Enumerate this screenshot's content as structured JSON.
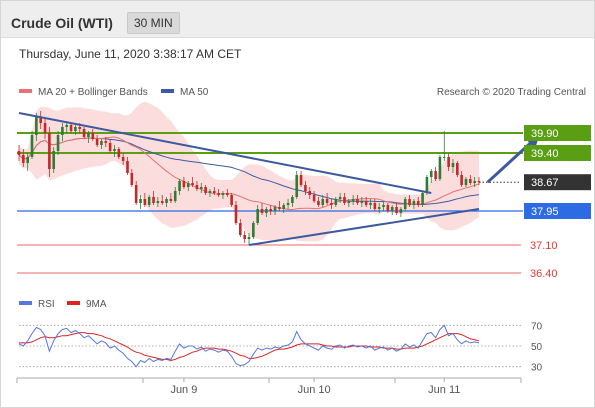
{
  "header": {
    "title": "Crude Oil (WTI)",
    "timeframe": "30 MIN"
  },
  "timestamp": "Thursday, June 11, 2020 3:38:17 AM CET",
  "legend": {
    "ma20_label": "MA 20 + Bollinger Bands",
    "ma50_label": "MA 50",
    "credit": "Research © 2020 Trading Central",
    "rsi_label": "RSI",
    "ma9_label": "9MA"
  },
  "colors": {
    "candle_up": "#2e7d32",
    "candle_down": "#c62828",
    "ma20": "#e57373",
    "ma50": "#3b5ba5",
    "bollinger_fill": "#f9d2d2",
    "resistance": "#5a9e14",
    "support": "#2d6be4",
    "target": "#e53935",
    "current": "#333333",
    "trendline": "#3d5a9e",
    "rsi": "#5577dd",
    "ma9": "#dd2222"
  },
  "chart_data": [
    {
      "type": "candlestick",
      "name": "Crude Oil (WTI) 30 MIN",
      "ylim": [
        36.0,
        40.5
      ],
      "x_ticks": [
        "Jun 9",
        "Jun 10",
        "Jun 11"
      ],
      "price_levels": [
        {
          "role": "resistance",
          "value": 39.9,
          "label": "39.90"
        },
        {
          "role": "resistance",
          "value": 39.4,
          "label": "39.40"
        },
        {
          "role": "current",
          "value": 38.67,
          "label": "38.67"
        },
        {
          "role": "support",
          "value": 37.95,
          "label": "37.95"
        },
        {
          "role": "target",
          "value": 37.1,
          "label": "37.10"
        },
        {
          "role": "target",
          "value": 36.4,
          "label": "36.40"
        }
      ],
      "trendlines": [
        {
          "name": "upper",
          "from": [
            0,
            40.4
          ],
          "to": [
            95,
            38.4
          ]
        },
        {
          "name": "lower",
          "from": [
            53,
            37.1
          ],
          "to": [
            106,
            38.0
          ]
        }
      ],
      "forecast_arrow": {
        "from": [
          108,
          38.67
        ],
        "to": [
          120,
          39.85
        ]
      },
      "candles": [
        [
          39.45,
          39.6,
          39.2,
          39.35
        ],
        [
          39.35,
          39.5,
          39.05,
          39.15
        ],
        [
          39.15,
          39.4,
          38.95,
          39.3
        ],
        [
          39.3,
          39.95,
          39.25,
          39.85
        ],
        [
          39.85,
          40.4,
          39.7,
          40.3
        ],
        [
          40.3,
          40.45,
          40.0,
          40.15
        ],
        [
          40.15,
          40.25,
          39.75,
          39.9
        ],
        [
          39.9,
          40.05,
          38.8,
          39.0
        ],
        [
          39.0,
          39.55,
          38.9,
          39.45
        ],
        [
          39.45,
          39.95,
          39.35,
          39.85
        ],
        [
          39.85,
          40.15,
          39.7,
          40.05
        ],
        [
          40.05,
          40.2,
          39.9,
          40.1
        ],
        [
          40.1,
          40.15,
          39.9,
          39.95
        ],
        [
          39.95,
          40.1,
          39.85,
          40.05
        ],
        [
          40.05,
          40.15,
          39.9,
          40.0
        ],
        [
          40.0,
          40.05,
          39.75,
          39.8
        ],
        [
          39.8,
          39.95,
          39.65,
          39.9
        ],
        [
          39.9,
          40.0,
          39.7,
          39.75
        ],
        [
          39.75,
          39.85,
          39.55,
          39.6
        ],
        [
          39.6,
          39.75,
          39.5,
          39.7
        ],
        [
          39.7,
          39.8,
          39.55,
          39.65
        ],
        [
          39.65,
          39.75,
          39.4,
          39.45
        ],
        [
          39.45,
          39.6,
          39.3,
          39.5
        ],
        [
          39.5,
          39.55,
          39.25,
          39.3
        ],
        [
          39.3,
          39.4,
          39.1,
          39.2
        ],
        [
          39.2,
          39.3,
          38.85,
          38.9
        ],
        [
          38.9,
          39.0,
          38.55,
          38.6
        ],
        [
          38.6,
          38.7,
          38.1,
          38.15
        ],
        [
          38.15,
          38.35,
          38.0,
          38.25
        ],
        [
          38.25,
          38.4,
          38.05,
          38.1
        ],
        [
          38.1,
          38.35,
          38.05,
          38.3
        ],
        [
          38.3,
          38.45,
          38.1,
          38.15
        ],
        [
          38.15,
          38.3,
          38.05,
          38.2
        ],
        [
          38.2,
          38.35,
          38.1,
          38.15
        ],
        [
          38.15,
          38.3,
          38.05,
          38.25
        ],
        [
          38.25,
          38.4,
          38.15,
          38.2
        ],
        [
          38.2,
          38.55,
          38.15,
          38.45
        ],
        [
          38.45,
          38.75,
          38.35,
          38.7
        ],
        [
          38.7,
          38.8,
          38.5,
          38.55
        ],
        [
          38.55,
          38.7,
          38.45,
          38.65
        ],
        [
          38.65,
          38.8,
          38.55,
          38.6
        ],
        [
          38.6,
          38.7,
          38.45,
          38.5
        ],
        [
          38.5,
          38.65,
          38.4,
          38.55
        ],
        [
          38.55,
          38.6,
          38.35,
          38.4
        ],
        [
          38.4,
          38.5,
          38.3,
          38.45
        ],
        [
          38.45,
          38.55,
          38.35,
          38.4
        ],
        [
          38.4,
          38.5,
          38.3,
          38.35
        ],
        [
          38.35,
          38.45,
          38.25,
          38.4
        ],
        [
          38.4,
          38.5,
          38.3,
          38.35
        ],
        [
          38.35,
          38.4,
          38.05,
          38.1
        ],
        [
          38.1,
          38.2,
          37.6,
          37.65
        ],
        [
          37.65,
          37.75,
          37.3,
          37.35
        ],
        [
          37.35,
          37.45,
          37.15,
          37.25
        ],
        [
          37.25,
          37.4,
          37.1,
          37.3
        ],
        [
          37.3,
          37.7,
          37.25,
          37.65
        ],
        [
          37.65,
          38.1,
          37.6,
          38.0
        ],
        [
          38.0,
          38.15,
          37.85,
          37.9
        ],
        [
          37.9,
          38.05,
          37.8,
          38.0
        ],
        [
          38.0,
          38.1,
          37.85,
          37.95
        ],
        [
          37.95,
          38.1,
          37.85,
          38.05
        ],
        [
          38.05,
          38.2,
          37.95,
          38.0
        ],
        [
          38.0,
          38.15,
          37.9,
          38.1
        ],
        [
          38.1,
          38.25,
          38.0,
          38.15
        ],
        [
          38.15,
          38.35,
          38.05,
          38.3
        ],
        [
          38.3,
          38.95,
          38.25,
          38.85
        ],
        [
          38.85,
          38.95,
          38.55,
          38.6
        ],
        [
          38.6,
          38.7,
          38.35,
          38.45
        ],
        [
          38.45,
          38.55,
          38.25,
          38.35
        ],
        [
          38.35,
          38.45,
          38.15,
          38.2
        ],
        [
          38.2,
          38.3,
          38.05,
          38.1
        ],
        [
          38.1,
          38.35,
          38.05,
          38.25
        ],
        [
          38.25,
          38.4,
          38.1,
          38.15
        ],
        [
          38.15,
          38.25,
          38.0,
          38.1
        ],
        [
          38.1,
          38.3,
          38.05,
          38.25
        ],
        [
          38.25,
          38.4,
          38.15,
          38.3
        ],
        [
          38.3,
          38.4,
          38.1,
          38.15
        ],
        [
          38.15,
          38.25,
          38.05,
          38.2
        ],
        [
          38.2,
          38.35,
          38.1,
          38.25
        ],
        [
          38.25,
          38.35,
          38.1,
          38.15
        ],
        [
          38.15,
          38.3,
          38.05,
          38.2
        ],
        [
          38.2,
          38.3,
          38.05,
          38.1
        ],
        [
          38.1,
          38.25,
          38.0,
          38.15
        ],
        [
          38.15,
          38.25,
          37.95,
          38.0
        ],
        [
          38.0,
          38.15,
          37.9,
          38.05
        ],
        [
          38.05,
          38.2,
          37.95,
          38.1
        ],
        [
          38.1,
          38.15,
          37.9,
          37.95
        ],
        [
          37.95,
          38.1,
          37.85,
          38.05
        ],
        [
          38.05,
          38.15,
          37.85,
          37.9
        ],
        [
          37.9,
          38.05,
          37.8,
          38.0
        ],
        [
          38.0,
          38.3,
          37.95,
          38.25
        ],
        [
          38.25,
          38.35,
          38.05,
          38.1
        ],
        [
          38.1,
          38.25,
          38.0,
          38.2
        ],
        [
          38.2,
          38.3,
          38.05,
          38.1
        ],
        [
          38.1,
          38.45,
          38.05,
          38.4
        ],
        [
          38.4,
          38.85,
          38.35,
          38.8
        ],
        [
          38.8,
          39.0,
          38.65,
          38.95
        ],
        [
          38.95,
          39.05,
          38.7,
          38.75
        ],
        [
          38.75,
          39.35,
          38.7,
          39.3
        ],
        [
          39.3,
          39.95,
          39.2,
          39.3
        ],
        [
          39.3,
          39.4,
          38.95,
          39.05
        ],
        [
          39.05,
          39.25,
          38.9,
          39.15
        ],
        [
          39.15,
          39.2,
          38.8,
          38.85
        ],
        [
          38.85,
          38.95,
          38.55,
          38.6
        ],
        [
          38.6,
          38.8,
          38.55,
          38.75
        ],
        [
          38.75,
          38.85,
          38.6,
          38.65
        ],
        [
          38.65,
          38.8,
          38.55,
          38.7
        ],
        [
          38.7,
          38.8,
          38.6,
          38.67
        ]
      ]
    },
    {
      "type": "line",
      "name": "RSI",
      "ylim": [
        20,
        80
      ],
      "y_ticks": [
        70,
        50,
        30
      ],
      "series": [
        {
          "name": "RSI",
          "values": [
            52,
            50,
            55,
            62,
            68,
            66,
            60,
            45,
            55,
            62,
            66,
            67,
            63,
            65,
            62,
            58,
            60,
            56,
            52,
            55,
            53,
            48,
            50,
            46,
            43,
            38,
            35,
            30,
            36,
            34,
            38,
            35,
            37,
            36,
            38,
            37,
            45,
            52,
            48,
            50,
            50,
            47,
            49,
            45,
            47,
            46,
            44,
            46,
            45,
            40,
            33,
            31,
            32,
            35,
            42,
            48,
            46,
            48,
            47,
            49,
            48,
            50,
            51,
            54,
            64,
            56,
            52,
            50,
            48,
            46,
            50,
            48,
            47,
            50,
            51,
            48,
            50,
            51,
            49,
            50,
            48,
            50,
            46,
            48,
            49,
            46,
            48,
            45,
            47,
            52,
            49,
            51,
            48,
            55,
            62,
            63,
            58,
            66,
            70,
            60,
            62,
            56,
            52,
            55,
            53,
            54,
            53
          ]
        },
        {
          "name": "9MA",
          "values": [
            53,
            53,
            53,
            54,
            56,
            58,
            59,
            58,
            58,
            59,
            60,
            60,
            61,
            62,
            63,
            63,
            62,
            62,
            61,
            60,
            58,
            57,
            55,
            53,
            51,
            49,
            46,
            44,
            43,
            41,
            40,
            39,
            38,
            37,
            37,
            36,
            37,
            39,
            40,
            42,
            44,
            45,
            47,
            48,
            48,
            48,
            47,
            47,
            46,
            45,
            43,
            41,
            40,
            38,
            38,
            39,
            40,
            42,
            44,
            46,
            47,
            47,
            48,
            49,
            51,
            52,
            52,
            52,
            52,
            52,
            51,
            50,
            50,
            49,
            49,
            49,
            49,
            50,
            50,
            50,
            50,
            49,
            49,
            49,
            48,
            48,
            48,
            47,
            47,
            48,
            48,
            48,
            49,
            50,
            52,
            54,
            56,
            58,
            60,
            62,
            62,
            62,
            61,
            59,
            57,
            56,
            55
          ]
        }
      ]
    }
  ]
}
